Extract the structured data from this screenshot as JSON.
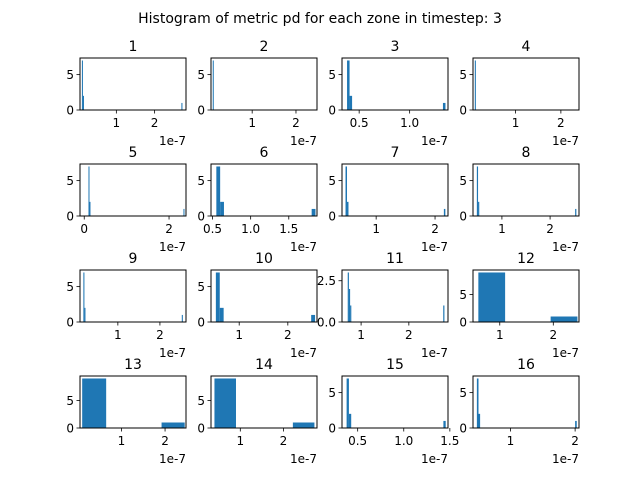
{
  "figure": {
    "title": "Histogram of metric pd for each zone in timestep: 3"
  },
  "colors": {
    "bar": "#1f77b4",
    "axes": "#000000",
    "background": "#ffffff"
  },
  "chart_data": [
    {
      "type": "bar",
      "title": "1",
      "x_exponent_label": "1e-7",
      "xlim": [
        0.05,
        2.82
      ],
      "ylim": [
        0,
        7.35
      ],
      "xticks": [
        {
          "v": 1,
          "label": "1"
        },
        {
          "v": 2,
          "label": "2"
        }
      ],
      "yticks": [
        {
          "v": 0,
          "label": "0"
        },
        {
          "v": 5,
          "label": "5"
        }
      ],
      "bins": [
        {
          "x0": 0.1,
          "x1": 0.1268,
          "count": 7
        },
        {
          "x0": 0.1268,
          "x1": 0.1536,
          "count": 2
        },
        {
          "x0": 2.7,
          "x1": 2.7268,
          "count": 1
        }
      ]
    },
    {
      "type": "bar",
      "title": "2",
      "x_exponent_label": "1e-7",
      "xlim": [
        0.06,
        2.48
      ],
      "ylim": [
        0,
        7.35
      ],
      "xticks": [
        {
          "v": 1,
          "label": "1"
        },
        {
          "v": 2,
          "label": "2"
        }
      ],
      "yticks": [
        {
          "v": 0,
          "label": "0"
        },
        {
          "v": 5,
          "label": "5"
        }
      ],
      "bins": [
        {
          "x0": 0.1,
          "x1": 0.1234,
          "count": 7
        }
      ]
    },
    {
      "type": "bar",
      "title": "3",
      "x_exponent_label": "1e-7",
      "xlim": [
        0.33,
        1.38
      ],
      "ylim": [
        0,
        7.35
      ],
      "xticks": [
        {
          "v": 0.5,
          "label": "0.5"
        },
        {
          "v": 1,
          "label": "1.0"
        }
      ],
      "yticks": [
        {
          "v": 0,
          "label": "0"
        },
        {
          "v": 5,
          "label": "5"
        }
      ],
      "bins": [
        {
          "x0": 0.38,
          "x1": 0.405,
          "count": 7
        },
        {
          "x0": 0.405,
          "x1": 0.43,
          "count": 2
        },
        {
          "x0": 1.33,
          "x1": 1.355,
          "count": 1
        }
      ]
    },
    {
      "type": "bar",
      "title": "4",
      "x_exponent_label": "1e-7",
      "xlim": [
        0.06,
        2.4
      ],
      "ylim": [
        0,
        7.35
      ],
      "xticks": [
        {
          "v": 1,
          "label": "1"
        },
        {
          "v": 2,
          "label": "2"
        }
      ],
      "yticks": [
        {
          "v": 0,
          "label": "0"
        },
        {
          "v": 5,
          "label": "5"
        }
      ],
      "bins": [
        {
          "x0": 0.1,
          "x1": 0.1234,
          "count": 7
        }
      ]
    },
    {
      "type": "bar",
      "title": "5",
      "x_exponent_label": "1e-7",
      "xlim": [
        -0.1,
        2.4
      ],
      "ylim": [
        0,
        7.35
      ],
      "xticks": [
        {
          "v": 0,
          "label": "0"
        },
        {
          "v": 2,
          "label": "2"
        }
      ],
      "yticks": [
        {
          "v": 0,
          "label": "0"
        },
        {
          "v": 5,
          "label": "5"
        }
      ],
      "bins": [
        {
          "x0": 0.1,
          "x1": 0.1234,
          "count": 7
        },
        {
          "x0": 0.1234,
          "x1": 0.1468,
          "count": 2
        },
        {
          "x0": 2.34,
          "x1": 2.3634,
          "count": 1
        }
      ]
    },
    {
      "type": "bar",
      "title": "6",
      "x_exponent_label": "1e-7",
      "xlim": [
        0.48,
        1.87
      ],
      "ylim": [
        0,
        7.35
      ],
      "xticks": [
        {
          "v": 0.5,
          "label": "0.5"
        },
        {
          "v": 1,
          "label": "1.0"
        },
        {
          "v": 1.5,
          "label": "1.5"
        }
      ],
      "yticks": [
        {
          "v": 0,
          "label": "0"
        },
        {
          "v": 5,
          "label": "5"
        }
      ],
      "bins": [
        {
          "x0": 0.55,
          "x1": 0.6,
          "count": 7
        },
        {
          "x0": 0.6,
          "x1": 0.65,
          "count": 2
        },
        {
          "x0": 1.8,
          "x1": 1.85,
          "count": 1
        }
      ]
    },
    {
      "type": "bar",
      "title": "7",
      "x_exponent_label": "1e-7",
      "xlim": [
        0.42,
        2.22
      ],
      "ylim": [
        0,
        7.35
      ],
      "xticks": [
        {
          "v": 1,
          "label": "1"
        },
        {
          "v": 2,
          "label": "2"
        }
      ],
      "yticks": [
        {
          "v": 0,
          "label": "0"
        },
        {
          "v": 5,
          "label": "5"
        }
      ],
      "bins": [
        {
          "x0": 0.48,
          "x1": 0.505,
          "count": 7
        },
        {
          "x0": 0.505,
          "x1": 0.53,
          "count": 2
        },
        {
          "x0": 2.15,
          "x1": 2.175,
          "count": 1
        }
      ]
    },
    {
      "type": "bar",
      "title": "8",
      "x_exponent_label": "1e-7",
      "xlim": [
        0.4,
        2.6
      ],
      "ylim": [
        0,
        7.35
      ],
      "xticks": [
        {
          "v": 1,
          "label": "1"
        },
        {
          "v": 2,
          "label": "2"
        }
      ],
      "yticks": [
        {
          "v": 0,
          "label": "0"
        },
        {
          "v": 5,
          "label": "5"
        }
      ],
      "bins": [
        {
          "x0": 0.48,
          "x1": 0.505,
          "count": 7
        },
        {
          "x0": 0.505,
          "x1": 0.53,
          "count": 2
        },
        {
          "x0": 2.52,
          "x1": 2.545,
          "count": 1
        }
      ]
    },
    {
      "type": "bar",
      "title": "9",
      "x_exponent_label": "1e-7",
      "xlim": [
        0.1,
        2.62
      ],
      "ylim": [
        0,
        7.35
      ],
      "xticks": [
        {
          "v": 1,
          "label": "1"
        },
        {
          "v": 2,
          "label": "2"
        }
      ],
      "yticks": [
        {
          "v": 0,
          "label": "0"
        },
        {
          "v": 5,
          "label": "5"
        }
      ],
      "bins": [
        {
          "x0": 0.18,
          "x1": 0.205,
          "count": 7
        },
        {
          "x0": 0.205,
          "x1": 0.23,
          "count": 2
        },
        {
          "x0": 2.52,
          "x1": 2.545,
          "count": 1
        }
      ]
    },
    {
      "type": "bar",
      "title": "10",
      "x_exponent_label": "1e-7",
      "xlim": [
        0.42,
        2.6
      ],
      "ylim": [
        0,
        7.35
      ],
      "xticks": [
        {
          "v": 1,
          "label": "1"
        },
        {
          "v": 2,
          "label": "2"
        }
      ],
      "yticks": [
        {
          "v": 0,
          "label": "0"
        },
        {
          "v": 5,
          "label": "5"
        }
      ],
      "bins": [
        {
          "x0": 0.52,
          "x1": 0.6,
          "count": 7
        },
        {
          "x0": 0.6,
          "x1": 0.68,
          "count": 2
        },
        {
          "x0": 2.48,
          "x1": 2.56,
          "count": 1
        }
      ]
    },
    {
      "type": "bar",
      "title": "11",
      "x_exponent_label": "1e-7",
      "xlim": [
        0.6,
        2.82
      ],
      "ylim": [
        0,
        3.15
      ],
      "xticks": [
        {
          "v": 1,
          "label": "1"
        },
        {
          "v": 2,
          "label": "2"
        }
      ],
      "yticks": [
        {
          "v": 0,
          "label": "0.0"
        },
        {
          "v": 2.5,
          "label": "2.5"
        }
      ],
      "bins": [
        {
          "x0": 0.72,
          "x1": 0.745,
          "count": 3
        },
        {
          "x0": 0.745,
          "x1": 0.77,
          "count": 2
        },
        {
          "x0": 0.77,
          "x1": 0.795,
          "count": 1
        },
        {
          "x0": 2.72,
          "x1": 2.745,
          "count": 1
        }
      ]
    },
    {
      "type": "bar",
      "title": "12",
      "x_exponent_label": "1e-7",
      "xlim": [
        0.5,
        2.48
      ],
      "ylim": [
        0,
        9.45
      ],
      "xticks": [
        {
          "v": 1,
          "label": "1"
        },
        {
          "v": 2,
          "label": "2"
        }
      ],
      "yticks": [
        {
          "v": 0,
          "label": "0"
        },
        {
          "v": 5,
          "label": "5"
        }
      ],
      "bins": [
        {
          "x0": 0.6,
          "x1": 1.1,
          "count": 9
        },
        {
          "x0": 1.95,
          "x1": 2.45,
          "count": 1
        }
      ]
    },
    {
      "type": "bar",
      "title": "13",
      "x_exponent_label": "1e-7",
      "xlim": [
        0.05,
        2.48
      ],
      "ylim": [
        0,
        9.45
      ],
      "xticks": [
        {
          "v": 1,
          "label": "1"
        },
        {
          "v": 2,
          "label": "2"
        }
      ],
      "yticks": [
        {
          "v": 0,
          "label": "0"
        },
        {
          "v": 5,
          "label": "5"
        }
      ],
      "bins": [
        {
          "x0": 0.1,
          "x1": 0.65,
          "count": 9
        },
        {
          "x0": 1.92,
          "x1": 2.45,
          "count": 1
        }
      ]
    },
    {
      "type": "bar",
      "title": "14",
      "x_exponent_label": "1e-7",
      "xlim": [
        0.32,
        2.78
      ],
      "ylim": [
        0,
        9.45
      ],
      "xticks": [
        {
          "v": 1,
          "label": "1"
        },
        {
          "v": 2,
          "label": "2"
        }
      ],
      "yticks": [
        {
          "v": 0,
          "label": "0"
        },
        {
          "v": 5,
          "label": "5"
        }
      ],
      "bins": [
        {
          "x0": 0.4,
          "x1": 0.9,
          "count": 9
        },
        {
          "x0": 2.22,
          "x1": 2.72,
          "count": 1
        }
      ]
    },
    {
      "type": "bar",
      "title": "15",
      "x_exponent_label": "1e-7",
      "xlim": [
        0.33,
        1.48
      ],
      "ylim": [
        0,
        7.35
      ],
      "xticks": [
        {
          "v": 0.5,
          "label": "0.5"
        },
        {
          "v": 1,
          "label": "1.0"
        },
        {
          "v": 1.5,
          "label": "1.5"
        }
      ],
      "yticks": [
        {
          "v": 0,
          "label": "0"
        },
        {
          "v": 5,
          "label": "5"
        }
      ],
      "bins": [
        {
          "x0": 0.38,
          "x1": 0.405,
          "count": 7
        },
        {
          "x0": 0.405,
          "x1": 0.43,
          "count": 2
        },
        {
          "x0": 1.43,
          "x1": 1.455,
          "count": 1
        }
      ]
    },
    {
      "type": "bar",
      "title": "16",
      "x_exponent_label": "1e-7",
      "xlim": [
        0.42,
        2.06
      ],
      "ylim": [
        0,
        7.35
      ],
      "xticks": [
        {
          "v": 1,
          "label": "1"
        },
        {
          "v": 2,
          "label": "2"
        }
      ],
      "yticks": [
        {
          "v": 0,
          "label": "0"
        },
        {
          "v": 5,
          "label": "5"
        }
      ],
      "bins": [
        {
          "x0": 0.48,
          "x1": 0.505,
          "count": 7
        },
        {
          "x0": 0.505,
          "x1": 0.53,
          "count": 2
        },
        {
          "x0": 2.0,
          "x1": 2.025,
          "count": 1
        }
      ]
    }
  ]
}
